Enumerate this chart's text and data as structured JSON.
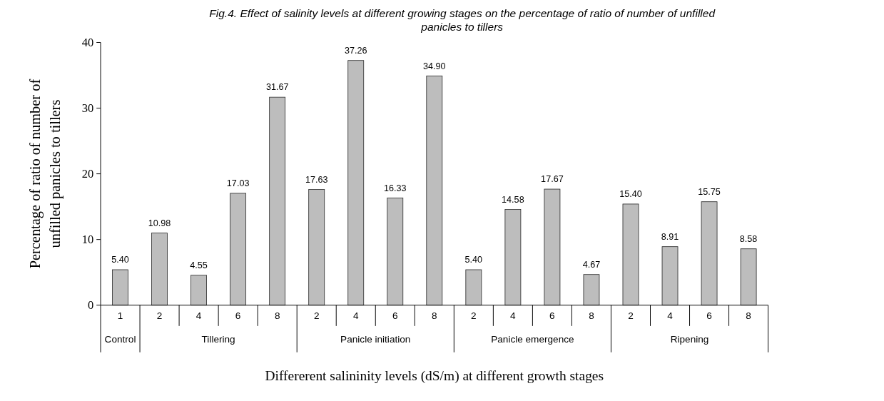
{
  "chart_data": {
    "type": "bar",
    "title": "Fig.4. Effect of salinity levels at different growing stages on the percentage of ratio of number of unfilled panicles to tillers",
    "xlabel": "Differerent salininity levels (dS/m) at different growth stages",
    "ylabel": "Percentage of ratio of number of unfilled panicles to tillers",
    "categories": [
      "1",
      "2",
      "4",
      "6",
      "8",
      "2",
      "4",
      "6",
      "8",
      "2",
      "4",
      "6",
      "8",
      "2",
      "4",
      "6",
      "8"
    ],
    "values": [
      5.4,
      10.98,
      4.55,
      17.03,
      31.67,
      17.63,
      37.26,
      16.33,
      34.9,
      5.4,
      14.58,
      17.67,
      4.67,
      15.4,
      8.91,
      15.75,
      8.58
    ],
    "value_labels": [
      "5.40",
      "10.98",
      "4.55",
      "17.03",
      "31.67",
      "17.63",
      "37.26",
      "16.33",
      "34.90",
      "5.40",
      "14.58",
      "17.67",
      "4.67",
      "15.40",
      "8.91",
      "15.75",
      "8.58"
    ],
    "color": "#bdbdbd",
    "ylim": [
      0,
      40
    ],
    "yticks": [
      0,
      10,
      20,
      30,
      40
    ],
    "grid": false,
    "annotations": [
      "Control",
      "Tillering",
      "Panicle initiation",
      "Panicle emergence",
      "Ripening"
    ]
  }
}
